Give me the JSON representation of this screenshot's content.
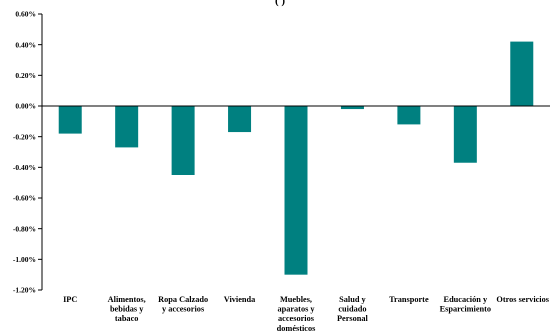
{
  "chart_data": {
    "type": "bar",
    "title": "(    )",
    "xlabel": "",
    "ylabel": "",
    "categories": [
      [
        "IPC"
      ],
      [
        "Alimentos,",
        "bebidas y",
        "tabaco"
      ],
      [
        "Ropa Calzado",
        "y accesorios"
      ],
      [
        "Vivienda"
      ],
      [
        "Muebles,",
        "aparatos y",
        "accesorios",
        "domésticos"
      ],
      [
        "Salud y",
        "cuidado",
        "Personal"
      ],
      [
        "Transporte"
      ],
      [
        "Educación y",
        "Esparcimiento"
      ],
      [
        "Otros servicios"
      ]
    ],
    "values": [
      -0.18,
      -0.27,
      -0.45,
      -0.17,
      -1.1,
      -0.02,
      -0.12,
      -0.37,
      0.42
    ],
    "ylim": [
      -1.2,
      0.6
    ],
    "yticks": [
      0.6,
      0.4,
      0.2,
      0.0,
      -0.2,
      -0.4,
      -0.6,
      -0.8,
      -1.0,
      -1.2
    ],
    "ytick_labels": [
      "0.60%",
      "0.40%",
      "0.20%",
      "0.00%",
      "-0.20%",
      "-0.40%",
      "-0.60%",
      "-0.80%",
      "-1.00%",
      "-1.20%"
    ],
    "grid": false,
    "legend": "none",
    "bar_color": "#008080"
  }
}
